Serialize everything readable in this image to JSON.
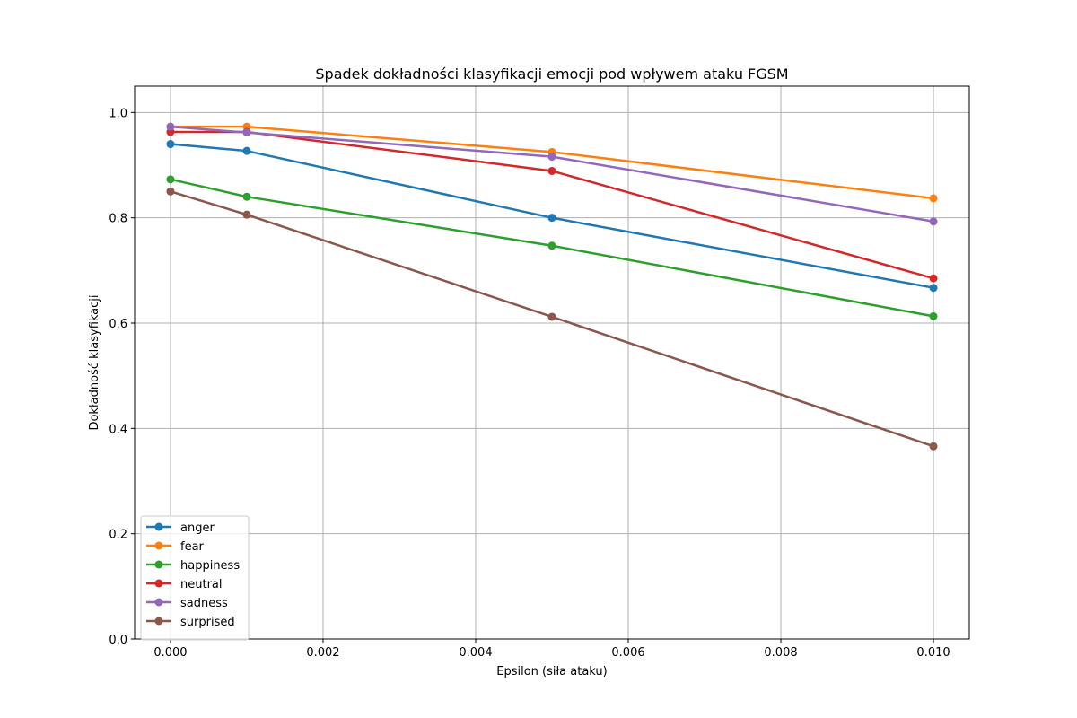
{
  "chart_data": {
    "type": "line",
    "title": "Spadek dokładności klasyfikacji emocji pod wpływem ataku FGSM",
    "xlabel": "Epsilon (siła ataku)",
    "ylabel": "Dokładność klasyfikacji",
    "x": [
      0.0,
      0.001,
      0.005,
      0.01
    ],
    "xlim": [
      -0.00047,
      0.01047
    ],
    "ylim": [
      0.0,
      1.05
    ],
    "xticks": [
      "0.000",
      "0.002",
      "0.004",
      "0.006",
      "0.008",
      "0.010"
    ],
    "xtick_values": [
      0.0,
      0.002,
      0.004,
      0.006,
      0.008,
      0.01
    ],
    "yticks": [
      "0.0",
      "0.2",
      "0.4",
      "0.6",
      "0.8",
      "1.0"
    ],
    "ytick_values": [
      0.0,
      0.2,
      0.4,
      0.6,
      0.8,
      1.0
    ],
    "grid": true,
    "legend_position": "lower-left",
    "series": [
      {
        "name": "anger",
        "color": "#1f77b4",
        "values": [
          0.94,
          0.927,
          0.8,
          0.667
        ]
      },
      {
        "name": "fear",
        "color": "#ff7f0e",
        "values": [
          0.973,
          0.973,
          0.925,
          0.837
        ]
      },
      {
        "name": "happiness",
        "color": "#2ca02c",
        "values": [
          0.873,
          0.84,
          0.747,
          0.613
        ]
      },
      {
        "name": "neutral",
        "color": "#d62728",
        "values": [
          0.963,
          0.963,
          0.889,
          0.685
        ]
      },
      {
        "name": "sadness",
        "color": "#9467bd",
        "values": [
          0.973,
          0.962,
          0.916,
          0.793
        ]
      },
      {
        "name": "surprised",
        "color": "#8c564b",
        "values": [
          0.85,
          0.806,
          0.612,
          0.366
        ]
      }
    ]
  }
}
